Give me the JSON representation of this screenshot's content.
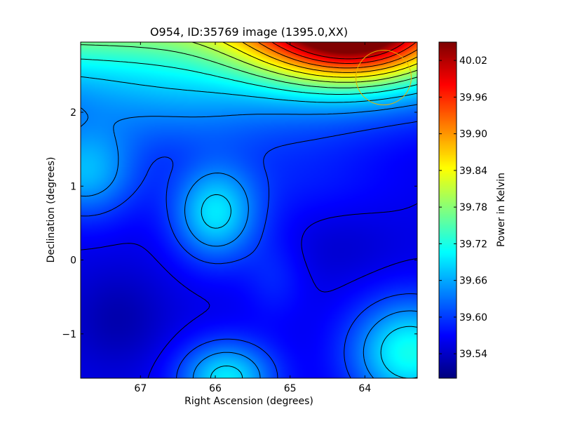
{
  "chart_data": {
    "type": "heatmap",
    "title": "O954, ID:35769 image (1395.0,XX)",
    "xlabel": "Right Ascension (degrees)",
    "ylabel": "Declination (degrees)",
    "colorbar_label": "Power in Kelvin",
    "colormap": "jet",
    "x_range": [
      67.8,
      63.3
    ],
    "y_range": [
      -1.6,
      2.95
    ],
    "x_ticks": [
      67,
      66,
      65,
      64
    ],
    "y_ticks": [
      -1,
      0,
      1,
      2
    ],
    "y_tick_labels": [
      "−1",
      "0",
      "1",
      "2"
    ],
    "color_range": [
      39.5,
      40.05
    ],
    "colorbar_ticks": [
      39.54,
      39.6,
      39.66,
      39.72,
      39.78,
      39.84,
      39.9,
      39.96,
      40.02
    ],
    "colorbar_tick_labels": [
      "39.54",
      "39.60",
      "39.66",
      "39.72",
      "39.78",
      "39.84",
      "39.90",
      "39.96",
      "40.02"
    ],
    "contour_levels": [
      39.56,
      39.6,
      39.64,
      39.68,
      39.72,
      39.76,
      39.8,
      39.84,
      39.88,
      39.92,
      39.96,
      40.0
    ],
    "field_components": [
      {
        "kind": "background",
        "value": 39.555
      },
      {
        "kind": "gradient_top",
        "dec_start": 1.2,
        "amplitude": 0.21
      },
      {
        "kind": "peak",
        "ra": 64.35,
        "dec": 3.1,
        "sigma_ra": 0.9,
        "sigma_dec": 0.5,
        "amplitude": 0.32
      },
      {
        "kind": "peak",
        "ra": 63.9,
        "dec": 2.9,
        "sigma_ra": 0.6,
        "sigma_dec": 0.35,
        "amplitude": 0.06
      },
      {
        "kind": "peak",
        "ra": 66.0,
        "dec": 0.62,
        "sigma_ra": 0.4,
        "sigma_dec": 0.45,
        "amplitude": 0.13
      },
      {
        "kind": "peak",
        "ra": 67.75,
        "dec": 1.2,
        "sigma_ra": 0.5,
        "sigma_dec": 0.45,
        "amplitude": 0.11
      },
      {
        "kind": "peak",
        "ra": 65.85,
        "dec": -1.6,
        "sigma_ra": 0.45,
        "sigma_dec": 0.35,
        "amplitude": 0.14
      },
      {
        "kind": "peak",
        "ra": 63.4,
        "dec": -1.25,
        "sigma_ra": 0.55,
        "sigma_dec": 0.5,
        "amplitude": 0.16
      },
      {
        "kind": "peak",
        "ra": 65.2,
        "dec": -0.25,
        "sigma_ra": 0.3,
        "sigma_dec": 0.4,
        "amplitude": 0.03
      },
      {
        "kind": "peak",
        "ra": 66.6,
        "dec": 2.0,
        "sigma_ra": 0.9,
        "sigma_dec": 0.5,
        "amplitude": 0.04
      },
      {
        "kind": "peak",
        "ra": 64.9,
        "dec": 1.3,
        "sigma_ra": 1.0,
        "sigma_dec": 0.6,
        "amplitude": 0.03
      },
      {
        "kind": "dip",
        "ra": 67.3,
        "dec": -0.8,
        "sigma_ra": 0.45,
        "sigma_dec": 0.45,
        "amplitude": 0.03
      },
      {
        "kind": "dip",
        "ra": 64.35,
        "dec": 0.2,
        "sigma_ra": 0.55,
        "sigma_dec": 0.35,
        "amplitude": 0.015
      }
    ],
    "annotations": [
      {
        "kind": "beam_ellipse",
        "ra": 63.75,
        "dec": 2.47,
        "radius_deg": 0.37,
        "color": "#e5b200"
      }
    ],
    "grid": false
  }
}
